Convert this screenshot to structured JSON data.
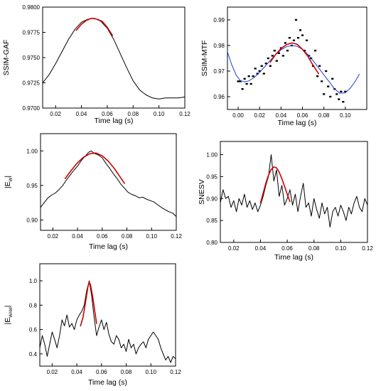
{
  "chart_data": [
    {
      "id": "ssim-gaf",
      "type": "line",
      "xlabel": "Time lag (s)",
      "ylabel": "SSIM-GAF",
      "xlim": [
        0.01,
        0.12
      ],
      "ylim": [
        0.97,
        0.98
      ],
      "xticks": [
        0.02,
        0.04,
        0.06,
        0.08,
        0.1,
        0.12
      ],
      "xtick_labels": [
        "0.02",
        "0.04",
        "0.06",
        "0.08",
        "0.10",
        "0.12"
      ],
      "yticks": [
        0.97,
        0.9725,
        0.975,
        0.9775,
        0.98
      ],
      "ytick_labels": [
        "0.9700",
        "0.9725",
        "0.9750",
        "0.9775",
        "0.9800"
      ],
      "series": [
        {
          "role": "measured",
          "style": "line",
          "color": "#000000",
          "x": [
            0.01,
            0.015,
            0.02,
            0.025,
            0.03,
            0.035,
            0.04,
            0.045,
            0.05,
            0.055,
            0.06,
            0.065,
            0.07,
            0.075,
            0.08,
            0.085,
            0.09,
            0.095,
            0.1,
            0.105,
            0.11,
            0.115,
            0.12
          ],
          "y": [
            0.9725,
            0.9733,
            0.9744,
            0.9756,
            0.9768,
            0.9778,
            0.9785,
            0.9788,
            0.9789,
            0.9786,
            0.9779,
            0.9768,
            0.9754,
            0.974,
            0.9727,
            0.9718,
            0.9713,
            0.971,
            0.9709,
            0.971,
            0.971,
            0.971,
            0.9711
          ]
        },
        {
          "role": "fit",
          "style": "line",
          "color": "#cc0000",
          "x": [
            0.036,
            0.04,
            0.044,
            0.048,
            0.052,
            0.056,
            0.06,
            0.064
          ],
          "y": [
            0.9777,
            0.9783,
            0.9787,
            0.9789,
            0.9788,
            0.9786,
            0.978,
            0.9772
          ]
        }
      ]
    },
    {
      "id": "ssim-mtf",
      "type": "scatter",
      "xlabel": "Time lag (s)",
      "ylabel": "SSIM-MTF",
      "xlim": [
        -0.01,
        0.12
      ],
      "ylim": [
        0.955,
        0.995
      ],
      "xticks": [
        0.0,
        0.02,
        0.04,
        0.06,
        0.08,
        0.1
      ],
      "xtick_labels": [
        "0.00",
        "0.02",
        "0.04",
        "0.06",
        "0.08",
        "0.10"
      ],
      "yticks": [
        0.96,
        0.97,
        0.98,
        0.99
      ],
      "ytick_labels": [
        "0.96",
        "0.97",
        "0.98",
        "0.99"
      ],
      "series": [
        {
          "role": "measured",
          "style": "points",
          "color": "#000000",
          "x": [
            0.0,
            0.002,
            0.004,
            0.006,
            0.008,
            0.01,
            0.012,
            0.014,
            0.016,
            0.018,
            0.02,
            0.022,
            0.024,
            0.026,
            0.028,
            0.03,
            0.032,
            0.034,
            0.036,
            0.038,
            0.04,
            0.042,
            0.044,
            0.046,
            0.048,
            0.05,
            0.052,
            0.054,
            0.056,
            0.058,
            0.06,
            0.062,
            0.064,
            0.066,
            0.068,
            0.07,
            0.072,
            0.074,
            0.076,
            0.078,
            0.08,
            0.082,
            0.084,
            0.086,
            0.088,
            0.09,
            0.092,
            0.094,
            0.096,
            0.098,
            0.1
          ],
          "y": [
            0.966,
            0.966,
            0.963,
            0.967,
            0.965,
            0.968,
            0.965,
            0.968,
            0.971,
            0.969,
            0.97,
            0.972,
            0.969,
            0.973,
            0.975,
            0.972,
            0.976,
            0.978,
            0.974,
            0.977,
            0.979,
            0.976,
            0.981,
            0.978,
            0.983,
            0.98,
            0.982,
            0.99,
            0.983,
            0.986,
            0.984,
            0.978,
            0.982,
            0.976,
            0.975,
            0.972,
            0.978,
            0.968,
            0.972,
            0.966,
            0.961,
            0.97,
            0.964,
            0.96,
            0.967,
            0.963,
            0.961,
            0.959,
            0.962,
            0.958,
            0.962
          ]
        },
        {
          "role": "smooth",
          "style": "line",
          "color": "#1f3fcf",
          "x": [
            -0.01,
            -0.006,
            -0.002,
            0.002,
            0.006,
            0.01,
            0.015,
            0.02,
            0.025,
            0.03,
            0.035,
            0.04,
            0.045,
            0.05,
            0.055,
            0.06,
            0.065,
            0.07,
            0.075,
            0.08,
            0.085,
            0.09,
            0.095,
            0.1,
            0.105,
            0.11,
            0.113
          ],
          "y": [
            0.9775,
            0.9725,
            0.9685,
            0.9663,
            0.9658,
            0.9662,
            0.9675,
            0.9695,
            0.9718,
            0.9742,
            0.9765,
            0.9783,
            0.9795,
            0.98,
            0.9797,
            0.9785,
            0.9765,
            0.974,
            0.9713,
            0.9685,
            0.9658,
            0.963,
            0.9613,
            0.9615,
            0.9635,
            0.9665,
            0.9688
          ]
        },
        {
          "role": "fit",
          "style": "line",
          "color": "#cc0000",
          "x": [
            0.03,
            0.035,
            0.04,
            0.045,
            0.05,
            0.055,
            0.06,
            0.065,
            0.07,
            0.075
          ],
          "y": [
            0.9735,
            0.9765,
            0.9788,
            0.9803,
            0.981,
            0.9805,
            0.9785,
            0.9758,
            0.9722,
            0.969
          ]
        }
      ]
    },
    {
      "id": "ewv",
      "type": "line",
      "xlabel": "Time lag (s)",
      "ylabel": "|E",
      "ylabel_sub": "W",
      "ylabel_close": "|",
      "xlim": [
        0.01,
        0.12
      ],
      "ylim": [
        0.885,
        1.025
      ],
      "xticks": [
        0.02,
        0.04,
        0.06,
        0.08,
        0.1,
        0.12
      ],
      "xtick_labels": [
        "0.02",
        "0.04",
        "0.06",
        "0.08",
        "0.10",
        "0.12"
      ],
      "yticks": [
        0.9,
        0.95,
        1.0
      ],
      "ytick_labels": [
        "0.90",
        "0.95",
        "1.00"
      ],
      "series": [
        {
          "role": "measured",
          "style": "line",
          "color": "#000000",
          "x": [
            0.01,
            0.013,
            0.016,
            0.019,
            0.022,
            0.025,
            0.028,
            0.031,
            0.034,
            0.037,
            0.04,
            0.043,
            0.046,
            0.049,
            0.051,
            0.054,
            0.057,
            0.06,
            0.063,
            0.066,
            0.069,
            0.072,
            0.075,
            0.078,
            0.081,
            0.084,
            0.087,
            0.09,
            0.093,
            0.096,
            0.099,
            0.102,
            0.105,
            0.108,
            0.111,
            0.114,
            0.117,
            0.12
          ],
          "y": [
            0.918,
            0.925,
            0.932,
            0.936,
            0.939,
            0.944,
            0.95,
            0.958,
            0.965,
            0.972,
            0.978,
            0.986,
            0.992,
            0.998,
            1.0,
            0.996,
            0.994,
            0.99,
            0.982,
            0.975,
            0.967,
            0.96,
            0.952,
            0.946,
            0.94,
            0.937,
            0.935,
            0.932,
            0.933,
            0.93,
            0.928,
            0.926,
            0.922,
            0.918,
            0.915,
            0.912,
            0.91,
            0.905
          ]
        },
        {
          "role": "fit",
          "style": "line",
          "color": "#cc0000",
          "x": [
            0.03,
            0.035,
            0.04,
            0.045,
            0.05,
            0.055,
            0.06,
            0.065,
            0.07,
            0.075,
            0.078
          ],
          "y": [
            0.96,
            0.972,
            0.983,
            0.991,
            0.996,
            0.997,
            0.993,
            0.985,
            0.974,
            0.961,
            0.953
          ]
        }
      ]
    },
    {
      "id": "snesv",
      "type": "line",
      "xlabel": "Time lag (s)",
      "ylabel": "SNESV",
      "xlim": [
        0.01,
        0.12
      ],
      "ylim": [
        0.8,
        1.03
      ],
      "xticks": [
        0.02,
        0.04,
        0.06,
        0.08,
        0.1,
        0.12
      ],
      "xtick_labels": [
        "0.02",
        "0.04",
        "0.06",
        "0.08",
        "0.10",
        "0.12"
      ],
      "yticks": [
        0.8,
        0.85,
        0.9,
        0.95,
        1.0
      ],
      "ytick_labels": [
        "0.80",
        "0.85",
        "0.90",
        "0.95",
        "1.00"
      ],
      "series": [
        {
          "role": "measured",
          "style": "line",
          "color": "#000000",
          "x": [
            0.01,
            0.012,
            0.014,
            0.016,
            0.018,
            0.02,
            0.022,
            0.024,
            0.026,
            0.028,
            0.03,
            0.032,
            0.034,
            0.036,
            0.038,
            0.04,
            0.042,
            0.044,
            0.046,
            0.048,
            0.05,
            0.052,
            0.054,
            0.056,
            0.058,
            0.06,
            0.062,
            0.064,
            0.066,
            0.068,
            0.07,
            0.072,
            0.074,
            0.076,
            0.078,
            0.08,
            0.082,
            0.084,
            0.086,
            0.088,
            0.09,
            0.092,
            0.094,
            0.096,
            0.098,
            0.1,
            0.102,
            0.104,
            0.106,
            0.108,
            0.11,
            0.112,
            0.114,
            0.116,
            0.118,
            0.12
          ],
          "y": [
            0.89,
            0.92,
            0.9,
            0.905,
            0.88,
            0.895,
            0.87,
            0.9,
            0.885,
            0.91,
            0.88,
            0.895,
            0.875,
            0.89,
            0.87,
            0.885,
            0.905,
            0.93,
            0.95,
            1.0,
            0.94,
            0.965,
            0.905,
            0.93,
            0.885,
            0.9,
            0.92,
            0.885,
            0.91,
            0.87,
            0.905,
            0.935,
            0.88,
            0.89,
            0.86,
            0.9,
            0.875,
            0.855,
            0.89,
            0.865,
            0.88,
            0.835,
            0.87,
            0.88,
            0.86,
            0.885,
            0.87,
            0.85,
            0.88,
            0.865,
            0.89,
            0.905,
            0.88,
            0.87,
            0.9,
            0.885
          ]
        },
        {
          "role": "fit",
          "style": "line",
          "color": "#cc0000",
          "x": [
            0.04,
            0.042,
            0.044,
            0.046,
            0.048,
            0.05,
            0.052,
            0.054,
            0.056,
            0.058,
            0.06,
            0.062
          ],
          "y": [
            0.89,
            0.912,
            0.935,
            0.953,
            0.966,
            0.972,
            0.97,
            0.96,
            0.945,
            0.928,
            0.91,
            0.893
          ]
        }
      ]
    },
    {
      "id": "ewam",
      "type": "line",
      "xlabel": "Time lag (s)",
      "ylabel": "|E",
      "ylabel_sub": "WAM",
      "ylabel_close": "|",
      "xlim": [
        0.01,
        0.12
      ],
      "ylim": [
        0.3,
        1.14
      ],
      "xticks": [
        0.02,
        0.04,
        0.06,
        0.08,
        0.1,
        0.12
      ],
      "xtick_labels": [
        "0.02",
        "0.04",
        "0.06",
        "0.08",
        "0.10",
        "0.12"
      ],
      "yticks": [
        0.4,
        0.6,
        0.8,
        1.0
      ],
      "ytick_labels": [
        "0.4",
        "0.6",
        "0.8",
        "1.0"
      ],
      "series": [
        {
          "role": "measured",
          "style": "line",
          "color": "#000000",
          "x": [
            0.01,
            0.012,
            0.014,
            0.016,
            0.018,
            0.02,
            0.022,
            0.024,
            0.026,
            0.028,
            0.03,
            0.032,
            0.034,
            0.036,
            0.038,
            0.04,
            0.042,
            0.044,
            0.046,
            0.048,
            0.05,
            0.052,
            0.054,
            0.056,
            0.058,
            0.06,
            0.062,
            0.064,
            0.066,
            0.068,
            0.07,
            0.072,
            0.074,
            0.076,
            0.078,
            0.08,
            0.082,
            0.084,
            0.086,
            0.088,
            0.09,
            0.092,
            0.094,
            0.096,
            0.098,
            0.1,
            0.102,
            0.104,
            0.106,
            0.108,
            0.11,
            0.112,
            0.114,
            0.116,
            0.118,
            0.12
          ],
          "y": [
            0.45,
            0.55,
            0.48,
            0.38,
            0.48,
            0.58,
            0.52,
            0.45,
            0.55,
            0.68,
            0.63,
            0.72,
            0.62,
            0.65,
            0.6,
            0.68,
            0.72,
            0.75,
            0.8,
            0.92,
            1.0,
            0.88,
            0.7,
            0.55,
            0.62,
            0.68,
            0.6,
            0.66,
            0.56,
            0.5,
            0.48,
            0.55,
            0.52,
            0.45,
            0.48,
            0.42,
            0.52,
            0.45,
            0.48,
            0.4,
            0.45,
            0.48,
            0.5,
            0.45,
            0.52,
            0.55,
            0.58,
            0.55,
            0.52,
            0.45,
            0.4,
            0.35,
            0.38,
            0.33,
            0.38,
            0.36
          ]
        },
        {
          "role": "fit",
          "style": "line",
          "color": "#cc0000",
          "x": [
            0.043,
            0.045,
            0.047,
            0.049,
            0.05,
            0.051,
            0.053,
            0.055,
            0.056
          ],
          "y": [
            0.63,
            0.7,
            0.82,
            0.95,
            0.99,
            0.97,
            0.86,
            0.72,
            0.65
          ]
        }
      ]
    }
  ]
}
